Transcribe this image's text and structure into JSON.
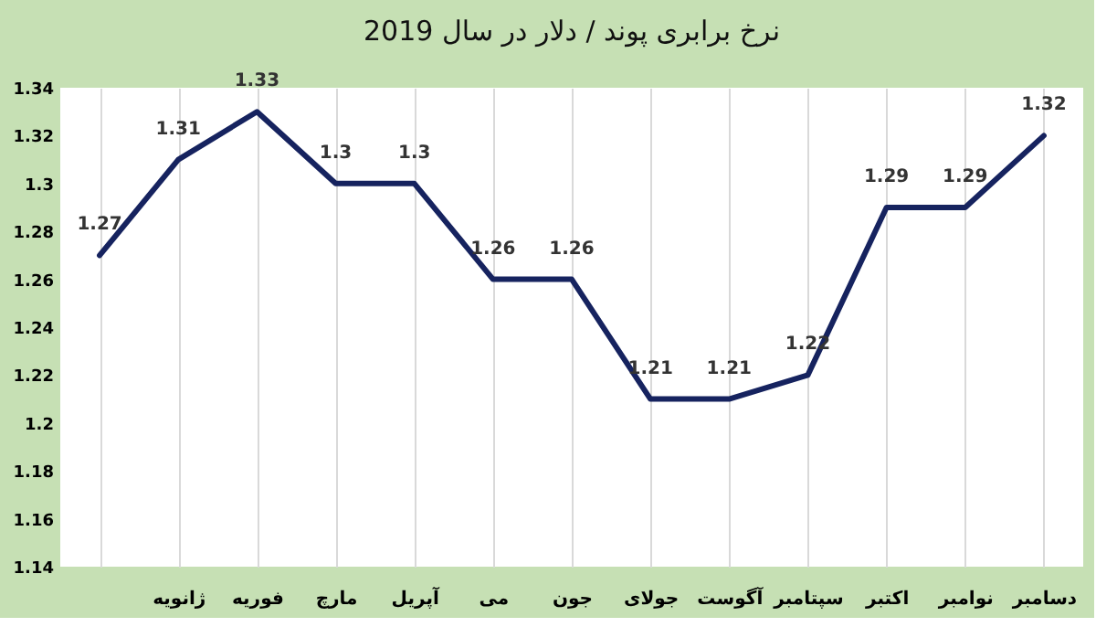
{
  "chart_data": {
    "type": "line",
    "title": "نرخ برابری پوند / دلار در سال 2019",
    "categories": [
      null,
      "ژانویه",
      "فوریه",
      "مارچ",
      "آپریل",
      "می",
      "جون",
      "جولای",
      "آگوست",
      "سپتامبر",
      "اکتبر",
      "نوامبر",
      "دسامبر"
    ],
    "series": [
      {
        "color": "#16235f",
        "values": [
          1.27,
          1.31,
          1.33,
          1.3,
          1.3,
          1.26,
          1.26,
          1.21,
          1.21,
          1.22,
          1.29,
          1.29,
          1.32
        ]
      }
    ],
    "ylim": [
      1.14,
      1.34
    ],
    "yticks": [
      1.14,
      1.16,
      1.18,
      1.2,
      1.22,
      1.24,
      1.26,
      1.28,
      1.3,
      1.32,
      1.34
    ],
    "grid": "x",
    "data_labels": true,
    "marker": "none",
    "line_style": "solid"
  }
}
